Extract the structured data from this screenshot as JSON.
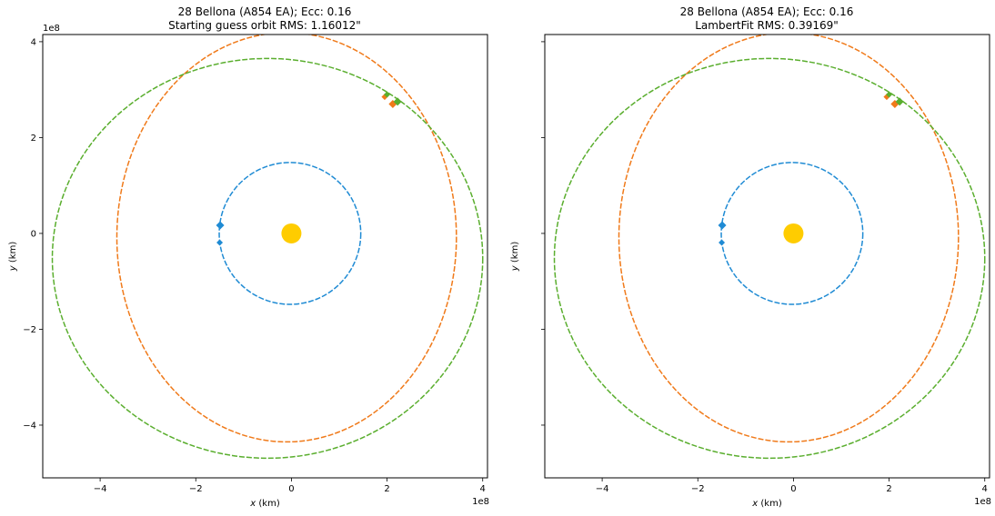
{
  "chart_data": [
    {
      "type": "scatter",
      "title_line1": "28 Bellona (A854 EA); Ecc: 0.16",
      "title_line2": "Starting guess orbit RMS: 1.16012\"",
      "xlabel_var": "x",
      "xlabel_unit": " (km)",
      "ylabel_var": "y",
      "ylabel_unit": " (km)",
      "x_offset_label": "1e8",
      "y_offset_label": "1e8",
      "xlim": [
        -5.2,
        4.1
      ],
      "ylim": [
        -5.1,
        4.15
      ],
      "xticks": [
        -4,
        -2,
        0,
        2,
        4
      ],
      "yticks": [
        -4,
        -2,
        0,
        2,
        4
      ],
      "xtick_labels": [
        "−4",
        "−2",
        "0",
        "2",
        "4"
      ],
      "ytick_labels": [
        "−4",
        "−2",
        "0",
        "2",
        "4"
      ],
      "show_yticklabels": true,
      "sun": {
        "x": 0.0,
        "y": 0.0,
        "color": "#ffcc00"
      },
      "orbits": [
        {
          "color": "#1f8bd4",
          "cx": -0.03,
          "cy": 0.0,
          "rx": 1.48,
          "ry": 1.48
        },
        {
          "color": "#f07a1a",
          "cx": -0.1,
          "cy": -0.08,
          "rx": 3.55,
          "ry": 4.27
        },
        {
          "color": "#5aae2e",
          "cx": -0.5,
          "cy": -0.52,
          "rx": 4.5,
          "ry": 4.17
        }
      ],
      "markers": [
        {
          "color": "#1f8bd4",
          "x": -1.49,
          "y": 0.17,
          "size": 4.5
        },
        {
          "color": "#1f8bd4",
          "x": -1.5,
          "y": -0.19,
          "size": 3.5
        },
        {
          "color": "#f07a1a",
          "x": 1.95,
          "y": 2.85,
          "size": 3.5
        },
        {
          "color": "#f07a1a",
          "x": 2.12,
          "y": 2.7,
          "size": 4.5
        },
        {
          "color": "#5aae2e",
          "x": 2.0,
          "y": 2.9,
          "size": 3.5
        },
        {
          "color": "#5aae2e",
          "x": 2.22,
          "y": 2.75,
          "size": 4.5
        }
      ]
    },
    {
      "type": "scatter",
      "title_line1": "28 Bellona (A854 EA); Ecc: 0.16",
      "title_line2": "LambertFit RMS: 0.39169\"",
      "xlabel_var": "x",
      "xlabel_unit": " (km)",
      "ylabel_var": "y",
      "ylabel_unit": " (km)",
      "x_offset_label": "1e8",
      "y_offset_label": "",
      "xlim": [
        -5.2,
        4.1
      ],
      "ylim": [
        -5.1,
        4.15
      ],
      "xticks": [
        -4,
        -2,
        0,
        2,
        4
      ],
      "yticks": [
        -4,
        -2,
        0,
        2,
        4
      ],
      "xtick_labels": [
        "−4",
        "−2",
        "0",
        "2",
        "4"
      ],
      "ytick_labels": [
        "",
        "",
        "",
        "",
        ""
      ],
      "show_yticklabels": false,
      "sun": {
        "x": 0.0,
        "y": 0.0,
        "color": "#ffcc00"
      },
      "orbits": [
        {
          "color": "#1f8bd4",
          "cx": -0.03,
          "cy": 0.0,
          "rx": 1.48,
          "ry": 1.48
        },
        {
          "color": "#f07a1a",
          "cx": -0.1,
          "cy": -0.08,
          "rx": 3.55,
          "ry": 4.27
        },
        {
          "color": "#5aae2e",
          "cx": -0.5,
          "cy": -0.52,
          "rx": 4.5,
          "ry": 4.17
        }
      ],
      "markers": [
        {
          "color": "#1f8bd4",
          "x": -1.49,
          "y": 0.17,
          "size": 4.5
        },
        {
          "color": "#1f8bd4",
          "x": -1.5,
          "y": -0.19,
          "size": 3.5
        },
        {
          "color": "#f07a1a",
          "x": 1.95,
          "y": 2.85,
          "size": 3.5
        },
        {
          "color": "#f07a1a",
          "x": 2.12,
          "y": 2.7,
          "size": 4.5
        },
        {
          "color": "#5aae2e",
          "x": 2.0,
          "y": 2.9,
          "size": 3.5
        },
        {
          "color": "#5aae2e",
          "x": 2.22,
          "y": 2.75,
          "size": 4.5
        }
      ]
    }
  ]
}
